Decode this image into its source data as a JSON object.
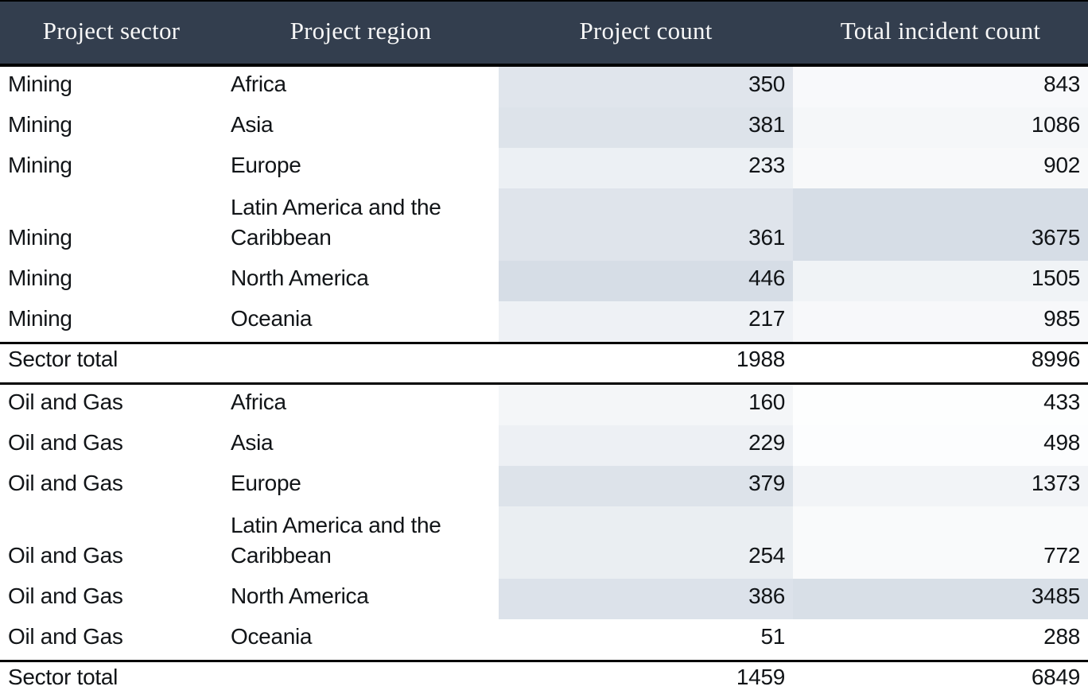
{
  "table": {
    "columns": [
      "Project sector",
      "Project region",
      "Project count",
      "Total incident count"
    ],
    "colors": {
      "header_bg": "#333e4e",
      "header_text": "#f7f7f7",
      "body_text": "#111417",
      "rule": "#000000",
      "shade_max": "#d6dde6",
      "shade_min": "#ffffff"
    },
    "rows": [
      {
        "kind": "data",
        "tall": false,
        "sector": "Mining",
        "region": "Africa",
        "project_count": "350",
        "incident_count": "843",
        "pc_bg": "#e0e5ec",
        "ic_bg": "#f8f9fb"
      },
      {
        "kind": "data",
        "tall": false,
        "sector": "Mining",
        "region": "Asia",
        "project_count": "381",
        "incident_count": "1086",
        "pc_bg": "#dde3ea",
        "ic_bg": "#f5f7f9"
      },
      {
        "kind": "data",
        "tall": false,
        "sector": "Mining",
        "region": "Europe",
        "project_count": "233",
        "incident_count": "902",
        "pc_bg": "#ecf0f4",
        "ic_bg": "#f8f9fa"
      },
      {
        "kind": "data",
        "tall": true,
        "sector": "Mining",
        "region": "Latin America and the Caribbean",
        "project_count": "361",
        "incident_count": "3675",
        "pc_bg": "#dfe4eb",
        "ic_bg": "#d6dde6"
      },
      {
        "kind": "data",
        "tall": false,
        "sector": "Mining",
        "region": "North America",
        "project_count": "446",
        "incident_count": "1505",
        "pc_bg": "#d6dde6",
        "ic_bg": "#f0f3f6"
      },
      {
        "kind": "data",
        "tall": false,
        "sector": "Mining",
        "region": "Oceania",
        "project_count": "217",
        "incident_count": "985",
        "pc_bg": "#eef1f5",
        "ic_bg": "#f7f8fa"
      },
      {
        "kind": "total",
        "label": "Sector total",
        "project_count": "1988",
        "incident_count": "8996"
      },
      {
        "kind": "data",
        "tall": false,
        "sector": "Oil and Gas",
        "region": "Africa",
        "project_count": "160",
        "incident_count": "433",
        "pc_bg": "#f4f6f8",
        "ic_bg": "#fdfefe"
      },
      {
        "kind": "data",
        "tall": false,
        "sector": "Oil and Gas",
        "region": "Asia",
        "project_count": "229",
        "incident_count": "498",
        "pc_bg": "#edf0f4",
        "ic_bg": "#fcfdfe"
      },
      {
        "kind": "data",
        "tall": false,
        "sector": "Oil and Gas",
        "region": "Europe",
        "project_count": "379",
        "incident_count": "1373",
        "pc_bg": "#dde3ea",
        "ic_bg": "#f2f4f7"
      },
      {
        "kind": "data",
        "tall": true,
        "sector": "Oil and Gas",
        "region": "Latin America and the Caribbean",
        "project_count": "254",
        "incident_count": "772",
        "pc_bg": "#eaeef2",
        "ic_bg": "#f9fafb"
      },
      {
        "kind": "data",
        "tall": false,
        "sector": "Oil and Gas",
        "region": "North America",
        "project_count": "386",
        "incident_count": "3485",
        "pc_bg": "#dce2ea",
        "ic_bg": "#d8dfe7"
      },
      {
        "kind": "data",
        "tall": false,
        "sector": "Oil and Gas",
        "region": "Oceania",
        "project_count": "51",
        "incident_count": "288",
        "pc_bg": "#ffffff",
        "ic_bg": "#ffffff"
      },
      {
        "kind": "total",
        "label": "Sector total",
        "project_count": "1459",
        "incident_count": "6849"
      }
    ]
  },
  "chart_data": {
    "type": "table",
    "title": "",
    "columns": [
      "Project sector",
      "Project region",
      "Project count",
      "Total incident count"
    ],
    "shading": "per-column gradient, white (column min) to slate #d6dde6 (column max)",
    "sections": [
      {
        "sector": "Mining",
        "rows": [
          {
            "region": "Africa",
            "project_count": 350,
            "incident_count": 843
          },
          {
            "region": "Asia",
            "project_count": 381,
            "incident_count": 1086
          },
          {
            "region": "Europe",
            "project_count": 233,
            "incident_count": 902
          },
          {
            "region": "Latin America and the Caribbean",
            "project_count": 361,
            "incident_count": 3675
          },
          {
            "region": "North America",
            "project_count": 446,
            "incident_count": 1505
          },
          {
            "region": "Oceania",
            "project_count": 217,
            "incident_count": 985
          }
        ],
        "sector_total": {
          "label": "Sector total",
          "project_count": 1988,
          "incident_count": 8996
        }
      },
      {
        "sector": "Oil and Gas",
        "rows": [
          {
            "region": "Africa",
            "project_count": 160,
            "incident_count": 433
          },
          {
            "region": "Asia",
            "project_count": 229,
            "incident_count": 498
          },
          {
            "region": "Europe",
            "project_count": 379,
            "incident_count": 1373
          },
          {
            "region": "Latin America and the Caribbean",
            "project_count": 254,
            "incident_count": 772
          },
          {
            "region": "North America",
            "project_count": 386,
            "incident_count": 3485
          },
          {
            "region": "Oceania",
            "project_count": 51,
            "incident_count": 288
          }
        ],
        "sector_total": {
          "label": "Sector total",
          "project_count": 1459,
          "incident_count": 6849
        }
      }
    ]
  }
}
